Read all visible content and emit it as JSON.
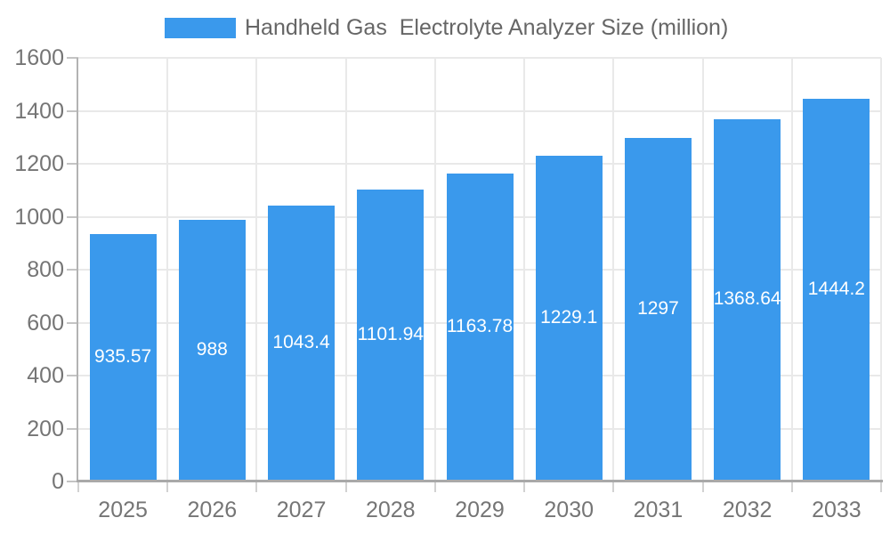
{
  "legend": {
    "series_label": "Handheld Gas  Electrolyte Analyzer Size (million)"
  },
  "chart_data": {
    "type": "bar",
    "title": "Handheld Gas  Electrolyte Analyzer Size (million)",
    "series_name": "Handheld Gas  Electrolyte Analyzer Size (million)",
    "categories": [
      "2025",
      "2026",
      "2027",
      "2028",
      "2029",
      "2030",
      "2031",
      "2032",
      "2033"
    ],
    "values": [
      935.57,
      988,
      1043.4,
      1101.94,
      1163.78,
      1229.1,
      1297,
      1368.64,
      1444.2
    ],
    "value_labels": [
      "935.57",
      "988",
      "1043.4",
      "1101.94",
      "1163.78",
      "1229.1",
      "1297",
      "1368.64",
      "1444.2"
    ],
    "xlabel": "",
    "ylabel": "",
    "ylim": [
      0,
      1600
    ],
    "y_ticks": [
      0,
      200,
      400,
      600,
      800,
      1000,
      1200,
      1400,
      1600
    ],
    "grid": true,
    "legend_position": "top"
  },
  "colors": {
    "bar": "#3a99ec",
    "bar_label": "#ffffff",
    "axis_text": "#757575",
    "legend_text": "#666666",
    "gridline": "#e9e9e9",
    "axis_line": "#aaaaaa",
    "background": "#ffffff"
  }
}
